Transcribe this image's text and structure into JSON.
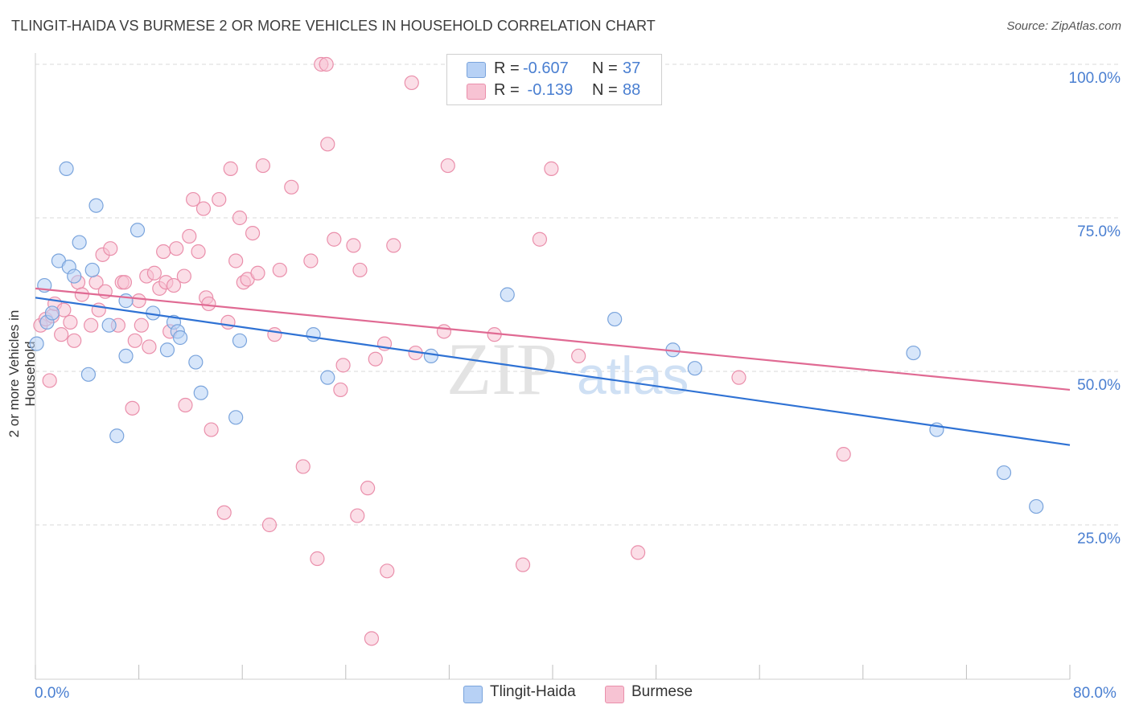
{
  "title": "TLINGIT-HAIDA VS BURMESE 2 OR MORE VEHICLES IN HOUSEHOLD CORRELATION CHART",
  "source": "Source: ZipAtlas.com",
  "watermark": {
    "zip": "ZIP",
    "atlas": "atlas"
  },
  "legend_box": {
    "rows": [
      {
        "r_label": "R = ",
        "r_value": "-0.607",
        "n_label": "N = ",
        "n_value": "37"
      },
      {
        "r_label": "R = ",
        "r_value": " -0.139",
        "n_label": "N = ",
        "n_value": "88"
      }
    ]
  },
  "bottom_legend": {
    "series1": "Tlingit-Haida",
    "series2": "Burmese"
  },
  "colors": {
    "blue_fill": "#b7d1f5",
    "blue_stroke": "#7aa4dc",
    "blue_line": "#2f72d4",
    "pink_fill": "#f7c3d3",
    "pink_stroke": "#ea8fab",
    "pink_line": "#e06a93",
    "axis_text": "#4a7fd1",
    "grid": "#d9d9d9"
  },
  "chart_data": {
    "type": "scatter",
    "title": "TLINGIT-HAIDA VS BURMESE 2 OR MORE VEHICLES IN HOUSEHOLD CORRELATION CHART",
    "xlabel": "",
    "ylabel": "2 or more Vehicles in Household",
    "xlim": [
      0,
      80
    ],
    "ylim": [
      0,
      105
    ],
    "x_tick_labels": [
      "0.0%",
      "80.0%"
    ],
    "y_tick_labels": [
      "100.0%",
      "75.0%",
      "50.0%",
      "25.0%"
    ],
    "y_ticks": [
      100,
      75,
      50,
      25
    ],
    "grid": true,
    "legend_position": "bottom-center",
    "series": [
      {
        "name": "Tlingit-Haida",
        "r": -0.607,
        "n": 37,
        "trend": {
          "x": [
            0,
            80
          ],
          "y": [
            62,
            38
          ]
        },
        "points": [
          [
            0.1,
            54.5
          ],
          [
            0.7,
            64
          ],
          [
            0.9,
            58
          ],
          [
            1.3,
            59.5
          ],
          [
            1.8,
            68
          ],
          [
            2.4,
            83
          ],
          [
            2.6,
            67
          ],
          [
            3.0,
            65.5
          ],
          [
            3.4,
            71
          ],
          [
            4.1,
            49.5
          ],
          [
            4.4,
            66.5
          ],
          [
            4.7,
            77
          ],
          [
            5.7,
            57.5
          ],
          [
            6.3,
            39.5
          ],
          [
            7.0,
            61.5
          ],
          [
            7.0,
            52.5
          ],
          [
            7.9,
            73
          ],
          [
            9.1,
            59.5
          ],
          [
            10.2,
            53.5
          ],
          [
            10.7,
            58
          ],
          [
            11.0,
            56.5
          ],
          [
            11.2,
            55.5
          ],
          [
            12.4,
            51.5
          ],
          [
            12.8,
            46.5
          ],
          [
            15.5,
            42.5
          ],
          [
            15.8,
            55
          ],
          [
            21.5,
            56
          ],
          [
            22.6,
            49
          ],
          [
            30.6,
            52.5
          ],
          [
            36.5,
            62.5
          ],
          [
            44.8,
            58.5
          ],
          [
            49.3,
            53.5
          ],
          [
            51.0,
            50.5
          ],
          [
            67.9,
            53
          ],
          [
            69.7,
            40.5
          ],
          [
            74.9,
            33.5
          ],
          [
            77.4,
            28
          ]
        ]
      },
      {
        "name": "Burmese",
        "r": -0.139,
        "n": 88,
        "trend": {
          "x": [
            0,
            80
          ],
          "y": [
            63.5,
            47
          ]
        },
        "points": [
          [
            0.4,
            57.5
          ],
          [
            0.8,
            58.5
          ],
          [
            1.1,
            48.5
          ],
          [
            1.3,
            59
          ],
          [
            1.5,
            61
          ],
          [
            2.0,
            56
          ],
          [
            2.7,
            58
          ],
          [
            3.0,
            55
          ],
          [
            3.3,
            64.5
          ],
          [
            3.6,
            62.5
          ],
          [
            4.3,
            57.5
          ],
          [
            4.7,
            64.5
          ],
          [
            4.9,
            60
          ],
          [
            5.2,
            69
          ],
          [
            5.4,
            63
          ],
          [
            5.8,
            70
          ],
          [
            6.4,
            57.5
          ],
          [
            6.7,
            64.5
          ],
          [
            6.9,
            64.5
          ],
          [
            7.5,
            44
          ],
          [
            7.7,
            55
          ],
          [
            8.0,
            61.5
          ],
          [
            8.6,
            65.5
          ],
          [
            8.8,
            54
          ],
          [
            9.2,
            66
          ],
          [
            9.6,
            63.5
          ],
          [
            9.9,
            69.5
          ],
          [
            10.1,
            64.5
          ],
          [
            10.4,
            56.5
          ],
          [
            10.7,
            64
          ],
          [
            10.9,
            70
          ],
          [
            11.5,
            65.5
          ],
          [
            11.6,
            44.5
          ],
          [
            11.9,
            72
          ],
          [
            12.2,
            78
          ],
          [
            12.6,
            69.5
          ],
          [
            13.0,
            76.5
          ],
          [
            13.2,
            62
          ],
          [
            13.4,
            61
          ],
          [
            13.6,
            40.5
          ],
          [
            14.2,
            78
          ],
          [
            14.6,
            27
          ],
          [
            14.9,
            58
          ],
          [
            15.1,
            83
          ],
          [
            15.5,
            68
          ],
          [
            15.8,
            75
          ],
          [
            16.1,
            64.5
          ],
          [
            16.4,
            65
          ],
          [
            16.8,
            72.5
          ],
          [
            17.2,
            66
          ],
          [
            17.6,
            83.5
          ],
          [
            18.1,
            25
          ],
          [
            18.9,
            66.5
          ],
          [
            19.8,
            80
          ],
          [
            20.7,
            34.5
          ],
          [
            21.3,
            68
          ],
          [
            21.8,
            19.5
          ],
          [
            22.1,
            100
          ],
          [
            22.5,
            100
          ],
          [
            22.6,
            87
          ],
          [
            23.1,
            71.5
          ],
          [
            23.6,
            47
          ],
          [
            23.8,
            51
          ],
          [
            24.6,
            70.5
          ],
          [
            24.9,
            26.5
          ],
          [
            25.1,
            66.5
          ],
          [
            25.7,
            31
          ],
          [
            26.0,
            6.5
          ],
          [
            26.3,
            52
          ],
          [
            27.2,
            17.5
          ],
          [
            27.0,
            54.5
          ],
          [
            27.7,
            70.5
          ],
          [
            29.1,
            97
          ],
          [
            29.4,
            53
          ],
          [
            31.6,
            56.5
          ],
          [
            31.9,
            83.5
          ],
          [
            32.4,
            96
          ],
          [
            37.7,
            18.5
          ],
          [
            39.0,
            71.5
          ],
          [
            39.9,
            83
          ],
          [
            46.6,
            20.5
          ],
          [
            54.4,
            49
          ],
          [
            62.5,
            36.5
          ],
          [
            42.0,
            52.5
          ],
          [
            35.5,
            56
          ],
          [
            18.5,
            56
          ],
          [
            8.2,
            57.5
          ],
          [
            2.2,
            60
          ]
        ]
      }
    ]
  }
}
